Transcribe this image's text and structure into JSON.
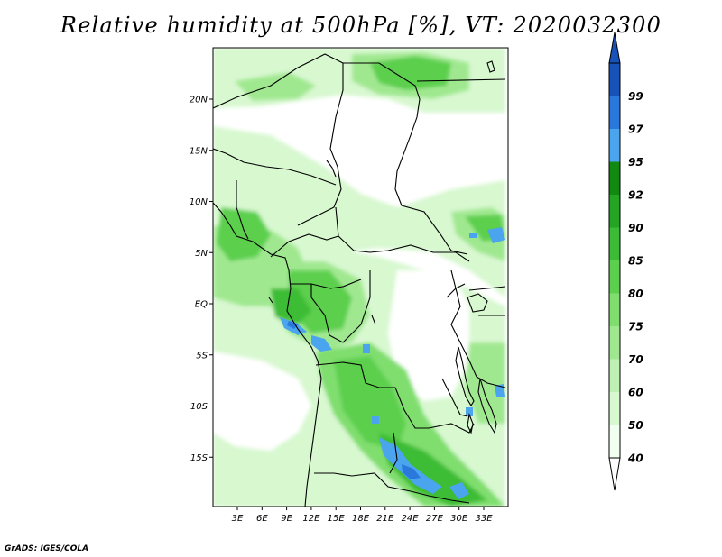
{
  "title": "Relative humidity at 500hPa [%], VT: 2020032300",
  "credit": "GrADS: IGES/COLA",
  "latitude_ticks": [
    {
      "label": "20N",
      "lat": 20
    },
    {
      "label": "15N",
      "lat": 15
    },
    {
      "label": "10N",
      "lat": 10
    },
    {
      "label": "5N",
      "lat": 5
    },
    {
      "label": "EQ",
      "lat": 0
    },
    {
      "label": "5S",
      "lat": -5
    },
    {
      "label": "10S",
      "lat": -10
    },
    {
      "label": "15S",
      "lat": -15
    }
  ],
  "longitude_ticks": [
    {
      "label": "3E",
      "lon": 3
    },
    {
      "label": "6E",
      "lon": 6
    },
    {
      "label": "9E",
      "lon": 9
    },
    {
      "label": "12E",
      "lon": 12
    },
    {
      "label": "15E",
      "lon": 15
    },
    {
      "label": "18E",
      "lon": 18
    },
    {
      "label": "21E",
      "lon": 21
    },
    {
      "label": "24E",
      "lon": 24
    },
    {
      "label": "27E",
      "lon": 27
    },
    {
      "label": "30E",
      "lon": 30
    },
    {
      "label": "33E",
      "lon": 33
    }
  ],
  "legend": {
    "levels": [
      {
        "label": "40",
        "color": "#f0fff0"
      },
      {
        "label": "50",
        "color": "#d8f8d0"
      },
      {
        "label": "60",
        "color": "#bff0b4"
      },
      {
        "label": "70",
        "color": "#a0e890"
      },
      {
        "label": "75",
        "color": "#80de6e"
      },
      {
        "label": "80",
        "color": "#5ccf4e"
      },
      {
        "label": "85",
        "color": "#3cbc36"
      },
      {
        "label": "90",
        "color": "#24a624"
      },
      {
        "label": "92",
        "color": "#128a12"
      },
      {
        "label": "95",
        "color": "#4aa4ee"
      },
      {
        "label": "97",
        "color": "#2a78dc"
      },
      {
        "label": "99",
        "color": "#1652b8"
      }
    ]
  }
}
